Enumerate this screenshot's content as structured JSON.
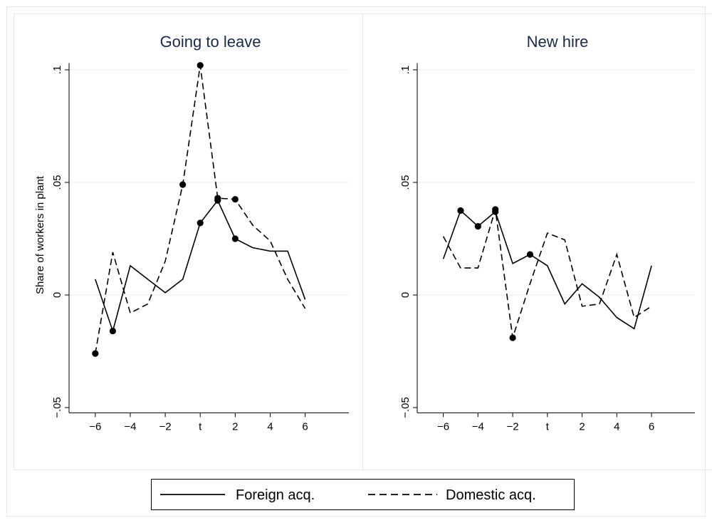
{
  "chart_data": [
    {
      "type": "line",
      "title": "Going to leave",
      "ylabel": "Share of workers in plant",
      "xlabel": "",
      "x": [
        -6,
        -5,
        -4,
        -3,
        -2,
        -1,
        0,
        1,
        2,
        3,
        4,
        5,
        6
      ],
      "xticks": [
        -6,
        -4,
        -2,
        0,
        2,
        4,
        6
      ],
      "xtick_labels": [
        "−6",
        "−4",
        "−2",
        "t",
        "2",
        "4",
        "6"
      ],
      "xlim": [
        -7.5,
        8.5
      ],
      "ylim": [
        -0.052,
        0.103
      ],
      "yticks": [
        -0.05,
        0,
        0.05,
        0.1
      ],
      "ytick_labels": [
        "−.05",
        "0",
        ".05",
        ".1"
      ],
      "grid": true,
      "series": [
        {
          "name": "Foreign acq.",
          "dash": "solid",
          "values": [
            0.007,
            -0.016,
            0.013,
            0.007,
            0.001,
            0.007,
            0.032,
            0.042,
            0.025,
            0.021,
            0.0195,
            0.0195,
            -0.002
          ],
          "markers": [
            1,
            6,
            7,
            8
          ]
        },
        {
          "name": "Domestic acq.",
          "dash": "dashed",
          "values": [
            -0.026,
            0.019,
            -0.008,
            -0.004,
            0.015,
            0.049,
            0.102,
            0.043,
            0.0425,
            0.031,
            0.024,
            0.007,
            -0.006
          ],
          "markers": [
            0,
            5,
            6,
            7,
            8
          ]
        }
      ]
    },
    {
      "type": "line",
      "title": "New hire",
      "ylabel": "",
      "xlabel": "",
      "x": [
        -6,
        -5,
        -4,
        -3,
        -2,
        -1,
        0,
        1,
        2,
        3,
        4,
        5,
        6
      ],
      "xticks": [
        -6,
        -4,
        -2,
        0,
        2,
        4,
        6
      ],
      "xtick_labels": [
        "−6",
        "−4",
        "−2",
        "t",
        "2",
        "4",
        "6"
      ],
      "xlim": [
        -7.5,
        8.5
      ],
      "ylim": [
        -0.052,
        0.103
      ],
      "yticks": [
        -0.05,
        0,
        0.05,
        0.1
      ],
      "ytick_labels": [
        "−.05",
        "0",
        ".05",
        ".1"
      ],
      "grid": true,
      "series": [
        {
          "name": "Foreign acq.",
          "dash": "solid",
          "values": [
            0.016,
            0.0375,
            0.0305,
            0.037,
            0.014,
            0.018,
            0.013,
            -0.004,
            0.005,
            -0.001,
            -0.01,
            -0.015,
            0.013
          ],
          "markers": [
            1,
            2,
            3,
            5
          ]
        },
        {
          "name": "Domestic acq.",
          "dash": "dashed",
          "values": [
            0.026,
            0.012,
            0.012,
            0.038,
            -0.019,
            0.005,
            0.0275,
            0.0245,
            -0.005,
            -0.004,
            0.018,
            -0.01,
            -0.005
          ],
          "markers": [
            3,
            4
          ]
        }
      ]
    }
  ],
  "legend": {
    "placement": "bottom",
    "items": [
      {
        "label": "Foreign acq.",
        "dash": "solid"
      },
      {
        "label": "Domestic acq.",
        "dash": "dashed"
      }
    ]
  },
  "colors": {
    "line": "#000000",
    "grid": "#e6ecf0",
    "panel_border": "#e3e7ea",
    "title": "#1a2a4a"
  }
}
